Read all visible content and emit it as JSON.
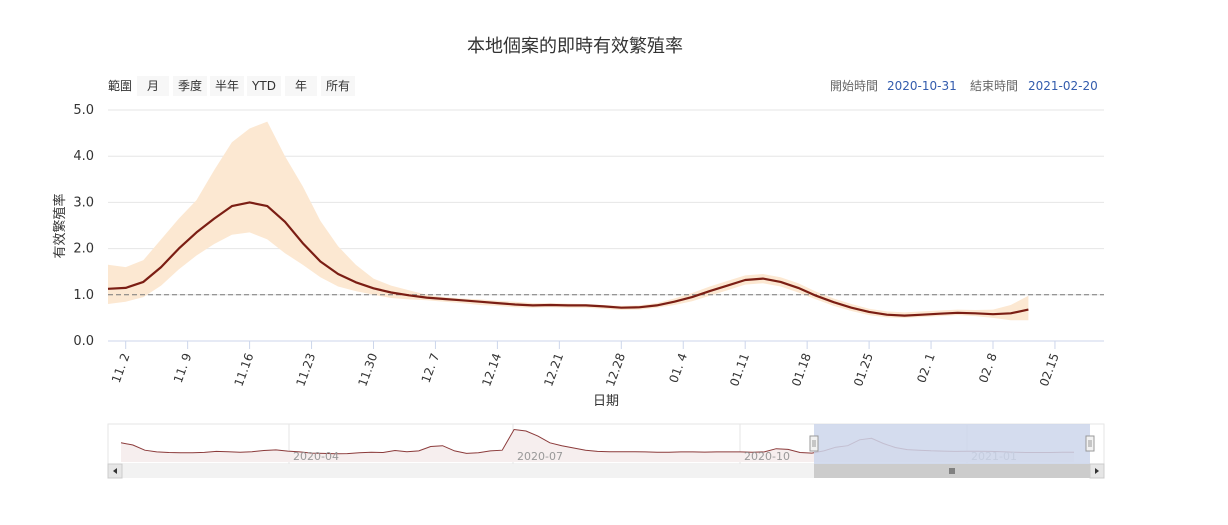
{
  "chart_data": {
    "type": "area",
    "title": "本地個案的即時有效繁殖率",
    "xlabel": "日期",
    "ylabel": "有效繁殖率",
    "ylim": [
      0,
      5
    ],
    "yticks": [
      "0.0",
      "1.0",
      "2.0",
      "3.0",
      "4.0",
      "5.0"
    ],
    "xticks": [
      "11. 2",
      "11. 9",
      "11.16",
      "11.23",
      "11.30",
      "12. 7",
      "12.14",
      "12.21",
      "12.28",
      "01. 4",
      "01.11",
      "01.18",
      "01.25",
      "02. 1",
      "02. 8",
      "02.15"
    ],
    "reference_line": 1.0,
    "grid": true,
    "series": [
      {
        "name": "",
        "color": "#7b1e14",
        "x": [
          "10-31",
          "11-02",
          "11-04",
          "11-06",
          "11-08",
          "11-10",
          "11-12",
          "11-14",
          "11-16",
          "11-18",
          "11-20",
          "11-22",
          "11-24",
          "11-26",
          "11-28",
          "11-30",
          "12-02",
          "12-04",
          "12-06",
          "12-08",
          "12-10",
          "12-12",
          "12-14",
          "12-16",
          "12-18",
          "12-20",
          "12-22",
          "12-24",
          "12-26",
          "12-28",
          "12-30",
          "01-01",
          "01-03",
          "01-05",
          "01-07",
          "01-09",
          "01-11",
          "01-13",
          "01-15",
          "01-17",
          "01-19",
          "01-21",
          "01-23",
          "01-25",
          "01-27",
          "01-29",
          "01-31",
          "02-02",
          "02-04",
          "02-06",
          "02-08",
          "02-10",
          "02-12"
        ],
        "y": [
          1.13,
          1.15,
          1.28,
          1.6,
          2.0,
          2.35,
          2.65,
          2.92,
          3.0,
          2.92,
          2.58,
          2.12,
          1.72,
          1.45,
          1.27,
          1.14,
          1.05,
          0.99,
          0.94,
          0.91,
          0.88,
          0.85,
          0.82,
          0.79,
          0.77,
          0.78,
          0.77,
          0.77,
          0.75,
          0.72,
          0.73,
          0.77,
          0.85,
          0.95,
          1.08,
          1.2,
          1.32,
          1.35,
          1.28,
          1.15,
          0.98,
          0.84,
          0.72,
          0.63,
          0.57,
          0.55,
          0.57,
          0.59,
          0.61,
          0.6,
          0.58,
          0.6,
          0.68
        ]
      }
    ],
    "confidence_band": {
      "color": "#fce8d2",
      "upper": [
        1.65,
        1.6,
        1.75,
        2.2,
        2.65,
        3.05,
        3.7,
        4.3,
        4.6,
        4.75,
        4.0,
        3.35,
        2.6,
        2.05,
        1.65,
        1.35,
        1.2,
        1.1,
        1.0,
        0.95,
        0.92,
        0.9,
        0.87,
        0.85,
        0.82,
        0.82,
        0.81,
        0.8,
        0.78,
        0.76,
        0.77,
        0.82,
        0.92,
        1.04,
        1.18,
        1.3,
        1.42,
        1.45,
        1.38,
        1.25,
        1.07,
        0.92,
        0.8,
        0.7,
        0.64,
        0.62,
        0.64,
        0.66,
        0.68,
        0.67,
        0.68,
        0.78,
        0.98
      ],
      "lower": [
        0.8,
        0.85,
        0.95,
        1.2,
        1.55,
        1.85,
        2.1,
        2.3,
        2.35,
        2.2,
        1.9,
        1.65,
        1.38,
        1.18,
        1.08,
        1.0,
        0.93,
        0.9,
        0.88,
        0.85,
        0.82,
        0.78,
        0.76,
        0.73,
        0.72,
        0.73,
        0.72,
        0.72,
        0.7,
        0.67,
        0.68,
        0.72,
        0.78,
        0.86,
        0.98,
        1.1,
        1.22,
        1.25,
        1.18,
        1.05,
        0.9,
        0.76,
        0.65,
        0.56,
        0.51,
        0.5,
        0.52,
        0.54,
        0.56,
        0.54,
        0.5,
        0.45,
        0.45
      ]
    }
  },
  "range_selector": {
    "zoom_label": "範圍",
    "buttons": [
      "月",
      "季度",
      "半年",
      "YTD",
      "年",
      "所有"
    ],
    "from_label": "開始時間",
    "from_value": "2020-10-31",
    "to_label": "結束時間",
    "to_value": "2021-02-20"
  },
  "navigator": {
    "labels": [
      "2020-04",
      "2020-07",
      "2020-10",
      "2021-01"
    ],
    "values": [
      1.3,
      1.15,
      0.8,
      0.68,
      0.64,
      0.63,
      0.62,
      0.65,
      0.72,
      0.7,
      0.66,
      0.7,
      0.78,
      0.82,
      0.74,
      0.68,
      0.6,
      0.58,
      0.56,
      0.57,
      0.62,
      0.66,
      0.64,
      0.78,
      0.7,
      0.75,
      1.05,
      1.1,
      0.75,
      0.58,
      0.62,
      0.75,
      0.8,
      2.2,
      2.1,
      1.75,
      1.3,
      1.1,
      0.95,
      0.8,
      0.72,
      0.7,
      0.7,
      0.7,
      0.68,
      0.66,
      0.66,
      0.68,
      0.68,
      0.67,
      0.68,
      0.68,
      0.68,
      0.66,
      0.68,
      0.9,
      0.85,
      0.64,
      0.6,
      0.75,
      1.0,
      1.1,
      1.5,
      1.6,
      1.25,
      0.98,
      0.84,
      0.8,
      0.76,
      0.74,
      0.72,
      0.73,
      0.73,
      0.72,
      0.7,
      0.66,
      0.64,
      0.64,
      0.64,
      0.66,
      0.66
    ],
    "colors": {
      "line": "#8b3a3a",
      "mask": "#ccd6eb",
      "bar": "#cccccc"
    }
  }
}
